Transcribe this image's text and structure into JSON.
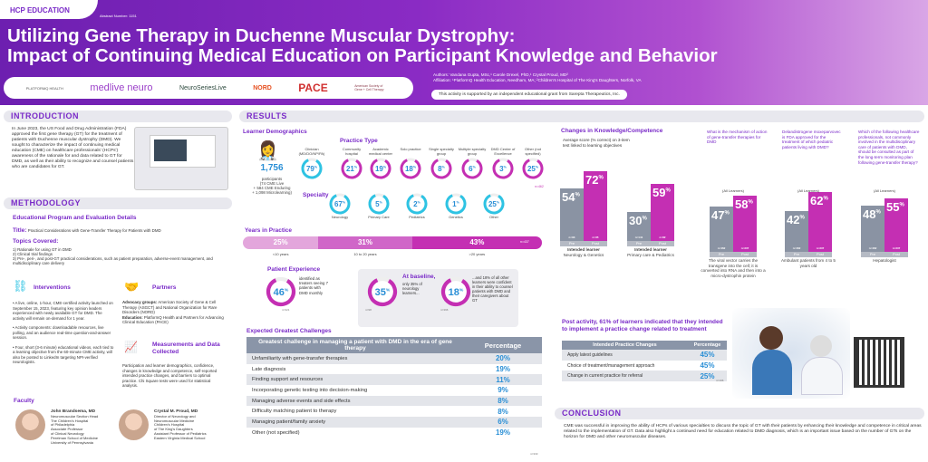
{
  "header": {
    "tag": "HCP EDUCATION",
    "abstract": "Abstract Number: 1151",
    "title_line1": "Utilizing Gene Therapy in Duchenne Muscular Dystrophy:",
    "title_line2": "Impact of Continuing Medical Education on Participant Knowledge and Behavior",
    "logos": [
      "PLATFORMQ HEALTH",
      "medlive neuro",
      "NeuroSeriesLive",
      "NORD",
      "PACE",
      "American Society of Gene + Cell Therapy"
    ],
    "authors": "Authors: Vandana Gupta, MSc,¹ Carole Drexel, PhD,¹ Crystal Proud, MD²",
    "affiliation": "Affiliation: ¹PlatformQ Health Education, Needham, MA; ²Children's Hospital of The King's Daughters, Norfolk, VA",
    "support": "This activity is supported by an independent educational grant from Sarepta Therapeutics, Inc."
  },
  "intro": {
    "heading": "INTRODUCTION",
    "text": "In June 2023, the US Food and Drug Administration (FDA) approved the first gene therapy (GT) for the treatment of patients with Duchenne muscular dystrophy (DMD). We sought to characterize the impact of continuing medical education (CME) on healthcare professionals' (HCPs') awareness of the rationale for and data related to GT for DMD, as well as their ability to recognize and counsel patients who are candidates for GT."
  },
  "methodology": {
    "heading": "METHODOLOGY",
    "sub": "Educational Program and Evaluation Details",
    "title_label": "Title:",
    "title_value": "Practical Considerations with Gene-Transfer Therapy for Patients with DMD",
    "topics_heading": "Topics Covered:",
    "topics": [
      "1) Rationale for using GT in DMD",
      "2) Clinical trial findings",
      "3) Pre-, peri-, and post-GT practical considerations, such as patient preparation, adverse-event management, and multidisciplinary care delivery"
    ],
    "interventions_heading": "Interventions",
    "interventions": [
      "• A live, online, 1-hour, CME-certified activity launched on September 15, 2023, featuring key opinion leaders experienced with newly available GT for DMD. The activity will remain on-demand for 1 year.",
      "• Activity components: downloadable resources, live polling, and an audience real-time question-and-answer session.",
      "• Four, short (3-6 minute) educational videos, each tied to a learning objective from the 60-minute CME activity, will also be posted to LinkedIn targeting NPI-verified neurologists."
    ],
    "partners_heading": "Partners",
    "partners_advocacy_label": "Advocacy groups:",
    "partners_advocacy": "American Society of Gene & Cell Therapy (ASGCT) and National Organization for Rare Disorders (NORD)",
    "partners_education_label": "Education:",
    "partners_education": "PlatformQ Health and Partners for Advancing Clinical Education (PACE)",
    "measurements_heading": "Measurements and Data Collected",
    "measurements": "Participation and learner demographics, confidence, changes in knowledge and competence, self-reported intended practice changes, and barriers to optimal practice. Chi Square tests were used for statistical analysis."
  },
  "faculty": {
    "heading": "Faculty",
    "members": [
      {
        "name": "John Brandsema, MD",
        "bio": "Neuromuscular Section Head\nThe Children's Hospital\nof Philadelphia\nAssociate Professor\nof Clinical Neurology\nPerelman School of Medicine\nUniversity of Pennsylvania"
      },
      {
        "name": "Crystal M. Proud, MD",
        "bio": "Director of Neurology and\nNeuromuscular Medicine\nChildren's Hospital\nof The King's Daughters\nAssistant Professor of Pediatrics\nEastern Virginia Medical School"
      }
    ]
  },
  "results": {
    "heading": "RESULTS",
    "demographics_heading": "Learner Demographics",
    "participants": "1,756",
    "participants_label": "participants",
    "participants_detail": "(74 CME Live\n+ 584 CME Enduring\n+ 1,098 Microlearning)",
    "clinician": {
      "label": "Clinician (MD/DO/NP/PA)",
      "value": 79
    },
    "practice_heading": "Practice Type",
    "practice_n": "n=462",
    "practice": [
      {
        "label": "Community hospital",
        "value": 21
      },
      {
        "label": "Academic medical center",
        "value": 19
      },
      {
        "label": "Solo practice",
        "value": 18
      },
      {
        "label": "Single specialty group",
        "value": 8
      },
      {
        "label": "Multiple specialty group",
        "value": 6
      },
      {
        "label": "DMD Center of Excellence",
        "value": 3
      },
      {
        "label": "Other (not specified)",
        "value": 25
      }
    ],
    "specialty_heading": "Specialty",
    "specialty": [
      {
        "label": "Neurology",
        "value": 67
      },
      {
        "label": "Primary Care",
        "value": 5
      },
      {
        "label": "Pediatrics",
        "value": 2
      },
      {
        "label": "Genetics",
        "value": 1
      },
      {
        "label": "Other",
        "value": 25
      }
    ],
    "years_heading": "Years in Practice",
    "years_n": "n=437",
    "years": [
      {
        "label": "<10 years",
        "value": 25
      },
      {
        "label": "10 to 20 years",
        "value": 31
      },
      {
        "label": ">20 years",
        "value": 43
      }
    ],
    "patient_heading": "Patient Experience",
    "patient": {
      "value": 46,
      "text": "identified as treaters seeing 7 patients with DMD monthly",
      "n": "n=321"
    },
    "baseline": {
      "value": 35,
      "heading": "At baseline,",
      "text": "only 35% of neurology learners...",
      "n": "n=98"
    },
    "others": {
      "value": 18,
      "text": "...and 18% of all other learners were confident in their ability to counsel patients with DMD and their caregivers about GT",
      "n": "n=396"
    },
    "challenges_heading": "Expected Greatest Challenges",
    "challenges_col1": "Greatest challenge in managing a patient with DMD in the era of gene therapy",
    "challenges_col2": "Percentage",
    "challenges_n": "n=333",
    "challenges": [
      {
        "label": "Unfamiliarity with gene-transfer therapies",
        "value": "20%"
      },
      {
        "label": "Late diagnosis",
        "value": "19%"
      },
      {
        "label": "Finding support and resources",
        "value": "11%"
      },
      {
        "label": "Incorporating genetic testing into decision-making",
        "value": "9%"
      },
      {
        "label": "Managing adverse events and side effects",
        "value": "8%"
      },
      {
        "label": "Difficulty matching patient to therapy",
        "value": "8%"
      },
      {
        "label": "Managing patient/family anxiety",
        "value": "6%"
      },
      {
        "label": "Other (not specified)",
        "value": "19%"
      }
    ]
  },
  "knowledge": {
    "heading": "Changes in Knowledge/Competence",
    "subtitle": "Average score (% correct) on 3-item test linked to learning objectives",
    "charts": [
      {
        "question": "",
        "group": "",
        "pre": 54,
        "post": 72,
        "pre_n": "n=93",
        "post_n": "n=35",
        "caption_bold": "Intended learner",
        "caption": "Neurology & Genetics"
      },
      {
        "question": "",
        "group": "",
        "pre": 30,
        "post": 59,
        "pre_n": "n=141",
        "post_n": "n=82",
        "caption_bold": "Intended learner",
        "caption": "Primary care & Pediatrics"
      },
      {
        "question": "What is the mechanism of action of gene-transfer therapies for DMD",
        "group": "(All Learners)",
        "pre": 47,
        "post": 58,
        "pre_n": "n=462",
        "post_n": "n=337",
        "caption_bold": "",
        "caption": "The viral vector carries the transgene into the cell; it is converted into RNA and then into a micro-dystrophin protein"
      },
      {
        "question": "Delandistrogene moxeparvovec is FDA approved for the treatment of which pediatric patients living with DMD?",
        "group": "(All Learners)",
        "pre": 42,
        "post": 62,
        "pre_n": "n=462",
        "post_n": "n=337",
        "caption_bold": "",
        "caption": "Ambulant patients from 4 to 5 years old"
      },
      {
        "question": "Which of the following healthcare professionals, not commonly involved in the multidisciplinary care of patients with DMD, should be consulted as part of the long-term monitoring plan following gene-transfer therapy?",
        "group": "(All Learners)",
        "pre": 48,
        "post": 55,
        "pre_n": "n=462",
        "post_n": "n=337",
        "caption_bold": "",
        "caption": "Hepatologist"
      }
    ],
    "pre_label": "Pre",
    "post_label": "Post"
  },
  "practice_change": {
    "heading": "Post activity, 61% of learners indicated that they intended to implement a practice change related to treatment",
    "col1": "Intended Practice Changes",
    "col2": "Percentage",
    "n": "n=196",
    "rows": [
      {
        "label": "Apply latest guidelines",
        "value": "45%"
      },
      {
        "label": "Choice of treatment/management approach",
        "value": "45%"
      },
      {
        "label": "Change in current practice for referral",
        "value": "25%"
      }
    ]
  },
  "conclusion": {
    "heading": "CONCLUSION",
    "text": "CME was successful in improving the ability of HCPs of various specialties to discuss the topic of GT with their patients by enhancing their knowledge and competence in critical areas related to the implementation of GT. Data also highlight a continued need for education related to DMD diagnosis, which is an important issue based on the number of GTs on the horizon for DMD and other neuromuscular diseases."
  },
  "colors": {
    "purple": "#7a2bc8",
    "magenta": "#c42fb3",
    "blue": "#2a8fd6",
    "cyan": "#2ec3e3",
    "gray": "#8a93a3"
  }
}
